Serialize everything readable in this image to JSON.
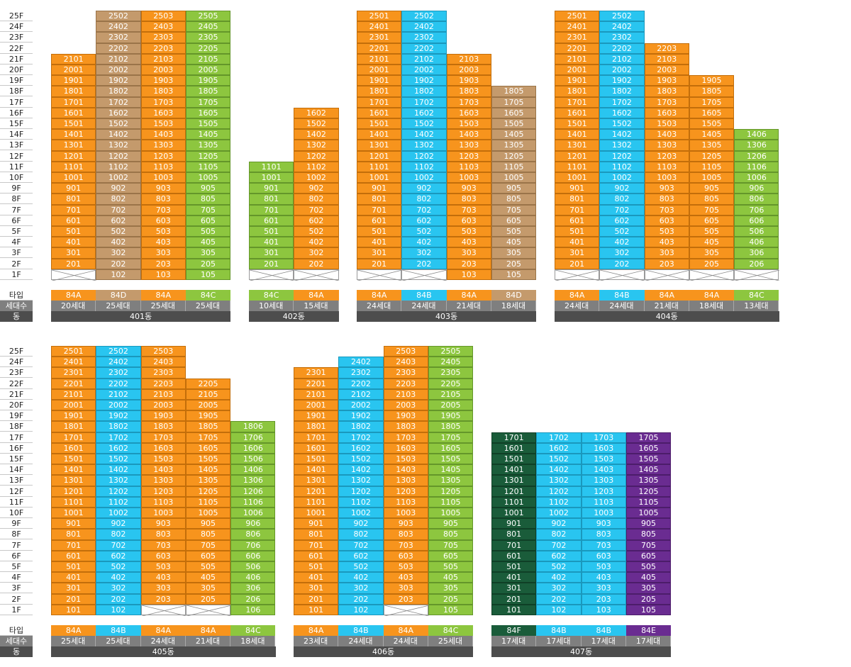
{
  "row_labels": {
    "type": "타입",
    "count": "세대수",
    "dong": "동"
  },
  "sections": [
    {
      "floors": [
        "25F",
        "24F",
        "23F",
        "22F",
        "21F",
        "20F",
        "19F",
        "18F",
        "17F",
        "16F",
        "15F",
        "14F",
        "13F",
        "12F",
        "11F",
        "10F",
        "9F",
        "8F",
        "7F",
        "6F",
        "5F",
        "4F",
        "3F",
        "2F",
        "1F"
      ],
      "buildings": [
        {
          "dong": "401동",
          "lines": [
            {
              "line": 1,
              "type": "84A",
              "count": "20세대",
              "top": 21,
              "empty1": true
            },
            {
              "line": 2,
              "type": "84D",
              "count": "25세대",
              "top": 25,
              "empty1": false
            },
            {
              "line": 3,
              "type": "84A",
              "count": "25세대",
              "top": 25,
              "empty1": false
            },
            {
              "line": 5,
              "type": "84C",
              "count": "25세대",
              "top": 25,
              "empty1": false
            }
          ]
        },
        {
          "dong": "402동",
          "lines": [
            {
              "line": 1,
              "type": "84C",
              "count": "10세대",
              "top": 11,
              "empty1": true
            },
            {
              "line": 2,
              "type": "84A",
              "count": "15세대",
              "top": 16,
              "empty1": true
            }
          ]
        },
        {
          "dong": "403동",
          "lines": [
            {
              "line": 1,
              "type": "84A",
              "count": "24세대",
              "top": 25,
              "empty1": true
            },
            {
              "line": 2,
              "type": "84B",
              "count": "24세대",
              "top": 25,
              "empty1": true
            },
            {
              "line": 3,
              "type": "84A",
              "count": "21세대",
              "top": 21,
              "empty1": false
            },
            {
              "line": 5,
              "type": "84D",
              "count": "18세대",
              "top": 18,
              "empty1": false
            }
          ]
        },
        {
          "dong": "404동",
          "lines": [
            {
              "line": 1,
              "type": "84A",
              "count": "24세대",
              "top": 25,
              "empty1": true
            },
            {
              "line": 2,
              "type": "84B",
              "count": "24세대",
              "top": 25,
              "empty1": true
            },
            {
              "line": 3,
              "type": "84A",
              "count": "21세대",
              "top": 22,
              "empty1": true
            },
            {
              "line": 5,
              "type": "84A",
              "count": "18세대",
              "top": 19,
              "empty1": true
            },
            {
              "line": 6,
              "type": "84C",
              "count": "13세대",
              "top": 14,
              "empty1": true
            }
          ]
        }
      ]
    },
    {
      "floors": [
        "25F",
        "24F",
        "23F",
        "22F",
        "21F",
        "20F",
        "19F",
        "18F",
        "17F",
        "16F",
        "15F",
        "14F",
        "13F",
        "12F",
        "11F",
        "10F",
        "9F",
        "8F",
        "7F",
        "6F",
        "5F",
        "4F",
        "3F",
        "2F",
        "1F"
      ],
      "buildings": [
        {
          "dong": "405동",
          "lines": [
            {
              "line": 1,
              "type": "84A",
              "count": "25세대",
              "top": 25,
              "empty1": false
            },
            {
              "line": 2,
              "type": "84B",
              "count": "25세대",
              "top": 25,
              "empty1": false
            },
            {
              "line": 3,
              "type": "84A",
              "count": "24세대",
              "top": 25,
              "empty1": true
            },
            {
              "line": 5,
              "type": "84A",
              "count": "21세대",
              "top": 22,
              "empty1": true
            },
            {
              "line": 6,
              "type": "84C",
              "count": "18세대",
              "top": 18,
              "empty1": false
            }
          ]
        },
        {
          "dong": "406동",
          "lines": [
            {
              "line": 1,
              "type": "84A",
              "count": "23세대",
              "top": 23,
              "empty1": false
            },
            {
              "line": 2,
              "type": "84B",
              "count": "24세대",
              "top": 24,
              "empty1": false
            },
            {
              "line": 3,
              "type": "84A",
              "count": "24세대",
              "top": 25,
              "empty1": true
            },
            {
              "line": 5,
              "type": "84C",
              "count": "25세대",
              "top": 25,
              "empty1": false
            }
          ]
        },
        {
          "dong": "407동",
          "lines": [
            {
              "line": 1,
              "type": "84F",
              "count": "17세대",
              "top": 17,
              "empty1": false
            },
            {
              "line": 2,
              "type": "84B",
              "count": "17세대",
              "top": 17,
              "empty1": false
            },
            {
              "line": 3,
              "type": "84B",
              "count": "17세대",
              "top": 17,
              "empty1": false
            },
            {
              "line": 5,
              "type": "84E",
              "count": "17세대",
              "top": 17,
              "empty1": false
            }
          ]
        }
      ]
    }
  ],
  "colors": {
    "84A": "#f7941d",
    "84B": "#29c5f0",
    "84C": "#8dc63f",
    "84D": "#c49a6c",
    "84E": "#6a2c91",
    "84F": "#1a5c3a"
  }
}
